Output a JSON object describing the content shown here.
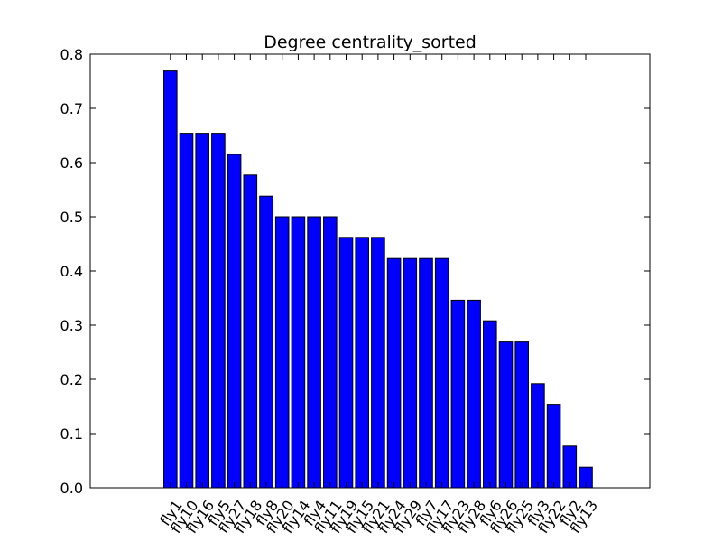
{
  "chart_data": {
    "type": "bar",
    "title": "Degree centrality_sorted",
    "xlabel": "",
    "ylabel": "",
    "ylim": [
      0,
      0.8
    ],
    "yticks": [
      "0.0",
      "0.1",
      "0.2",
      "0.3",
      "0.4",
      "0.5",
      "0.6",
      "0.7",
      "0.8"
    ],
    "categories": [
      "fly1",
      "fly10",
      "fly16",
      "fly5",
      "fly27",
      "fly18",
      "fly8",
      "fly20",
      "fly14",
      "fly4",
      "fly11",
      "fly19",
      "fly15",
      "fly21",
      "fly24",
      "fly29",
      "fly7",
      "fly17",
      "fly23",
      "fly28",
      "fly6",
      "fly26",
      "fly25",
      "fly3",
      "fly22",
      "fly2",
      "fly13"
    ],
    "values": [
      0.769,
      0.654,
      0.654,
      0.654,
      0.615,
      0.577,
      0.538,
      0.5,
      0.5,
      0.5,
      0.5,
      0.462,
      0.462,
      0.462,
      0.423,
      0.423,
      0.423,
      0.423,
      0.346,
      0.346,
      0.308,
      0.269,
      0.269,
      0.192,
      0.154,
      0.077,
      0.038
    ],
    "bar_color": "#0000ff",
    "grid": false
  }
}
